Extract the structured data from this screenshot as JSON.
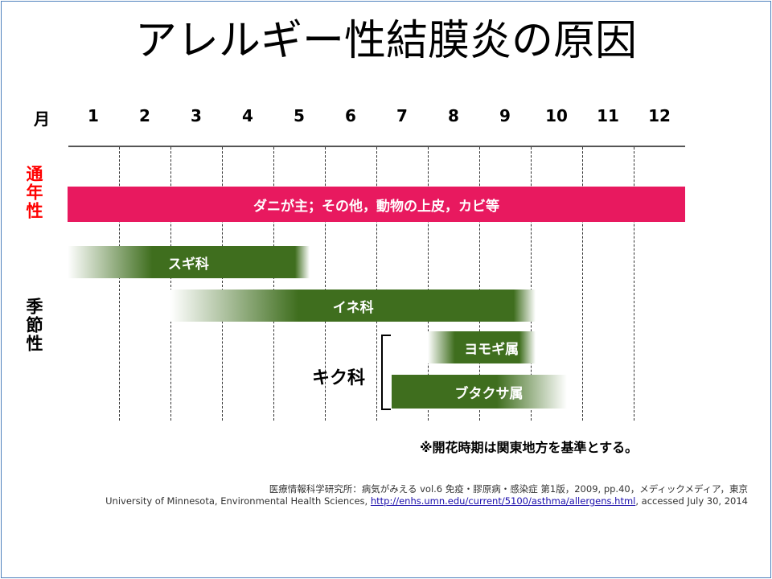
{
  "title": "アレルギー性結膜炎の原因",
  "chart_data": {
    "type": "gantt",
    "x_axis_label": "月",
    "months": [
      "1",
      "2",
      "3",
      "4",
      "5",
      "6",
      "7",
      "8",
      "9",
      "10",
      "11",
      "12"
    ],
    "groups": [
      {
        "label": "通年性",
        "color": "#ff0000"
      },
      {
        "label": "季節性",
        "color": "#000000"
      }
    ],
    "bars": [
      {
        "label": "ダニが主；その他，動物の上皮，カビ等",
        "group": "通年性",
        "start": 0.5,
        "end": 12.5,
        "color": "#e8195f",
        "fade": "none"
      },
      {
        "label": "スギ科",
        "group": "季節性",
        "start": 0.5,
        "end": 5.2,
        "color": "#3f6e1e",
        "fade": "left"
      },
      {
        "label": "イネ科",
        "group": "季節性",
        "start": 2.5,
        "end": 9.6,
        "color": "#3f6e1e",
        "fade": "left"
      },
      {
        "label": "ヨモギ属",
        "group": "季節性",
        "subgroup": "キク科",
        "start": 7.5,
        "end": 9.6,
        "color": "#3f6e1e",
        "fade": "both"
      },
      {
        "label": "ブタクサ属",
        "group": "季節性",
        "subgroup": "キク科",
        "start": 6.8,
        "end": 10.2,
        "color": "#3f6e1e",
        "fade": "right"
      }
    ],
    "subgroup_label": "キク科",
    "note": "※開花時期は関東地方を基準とする。"
  },
  "source": {
    "line1": "医療情報科学研究所：病気がみえる vol.6 免疫・膠原病・感染症 第1版，2009, pp.40，メディックメディア，東京",
    "line2_prefix": "University of Minnesota, Environmental Health Sciences, ",
    "line2_link": "http://enhs.umn.edu/current/5100/asthma/allergens.html",
    "line2_suffix": ", accessed July 30, 2014"
  }
}
